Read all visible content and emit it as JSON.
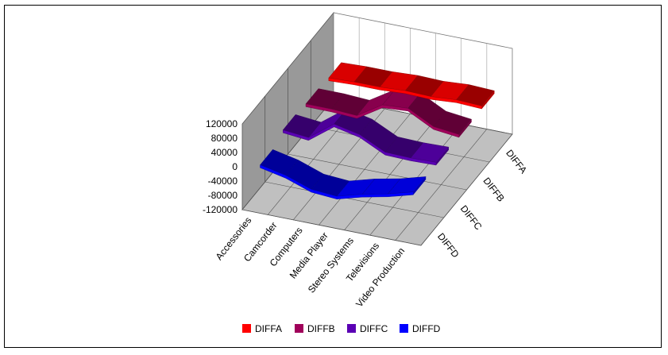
{
  "chart_data": {
    "type": "area",
    "title": "",
    "xlabel": "",
    "ylabel": "",
    "categories": [
      "Accessories",
      "Camcorder",
      "Computers",
      "Media Player",
      "Stereo Systems",
      "Televisions",
      "Video Production"
    ],
    "ylim": [
      -120000,
      120000
    ],
    "yticks": [
      "120000",
      "80000",
      "40000",
      "0",
      "-40000",
      "-80000",
      "-120000"
    ],
    "ytick_values": [
      120000,
      80000,
      40000,
      0,
      -40000,
      -80000,
      -120000
    ],
    "legend_position": "bottom",
    "grid": true,
    "series": [
      {
        "name": "DIFFA",
        "color": "#ff0000",
        "values": [
          5000,
          8000,
          8000,
          12000,
          10000,
          15000,
          12000
        ]
      },
      {
        "name": "DIFFB",
        "color": "#a0005a",
        "values": [
          10000,
          10000,
          6000,
          50000,
          55000,
          18000,
          10000
        ]
      },
      {
        "name": "DIFFC",
        "color": "#5a00b4",
        "values": [
          15000,
          8000,
          60000,
          45000,
          10000,
          8000,
          10000
        ]
      },
      {
        "name": "DIFFD",
        "color": "#0000ff",
        "values": [
          -5000,
          -20000,
          -45000,
          -50000,
          -30000,
          -15000,
          5000
        ]
      }
    ]
  }
}
